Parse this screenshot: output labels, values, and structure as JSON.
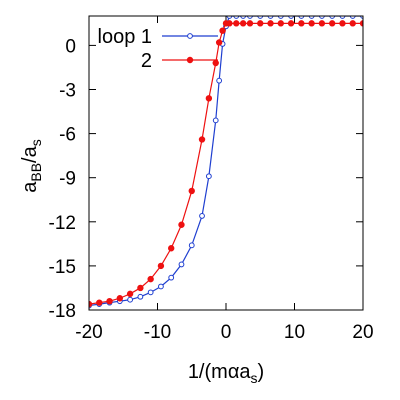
{
  "chart_data": {
    "type": "line",
    "xlabel": {
      "main": "1/(m",
      "alpha": "α",
      "mid": "a",
      "sub": "s",
      "close": ")"
    },
    "ylabel": {
      "main": "a",
      "sub1": "BB",
      "slash": "/a",
      "sub2": "s"
    },
    "xlim": [
      -20,
      20
    ],
    "ylim": [
      -18,
      2
    ],
    "xticks": [
      -20,
      -10,
      0,
      10,
      20
    ],
    "yticks": [
      0,
      -3,
      -6,
      -9,
      -12,
      -15,
      -18
    ],
    "grid": false,
    "legend_position": "top-left",
    "series": [
      {
        "name": "loop 1",
        "color": "#1f3fd0",
        "marker": "open-circle",
        "x": [
          -20,
          -18.5,
          -17,
          -15.5,
          -14,
          -12.5,
          -11,
          -9.5,
          -8,
          -6.5,
          -5,
          -3.5,
          -2.5,
          -1.5,
          -1,
          -0.5,
          0,
          0.5,
          1.5,
          2.5,
          3.5,
          5,
          6.5,
          8,
          9.5,
          11,
          12.5,
          14,
          15.5,
          17,
          18.5,
          20
        ],
        "y": [
          -17.7,
          -17.6,
          -17.5,
          -17.4,
          -17.3,
          -17.1,
          -16.8,
          -16.4,
          -15.8,
          -14.9,
          -13.6,
          -11.6,
          -8.9,
          -5.1,
          -2.4,
          0.1,
          1.3,
          2.0,
          2.0,
          2.0,
          2.0,
          2.0,
          2.0,
          2.0,
          2.0,
          2.0,
          2.0,
          2.0,
          2.0,
          2.0,
          2.0,
          2.0
        ]
      },
      {
        "name": "2",
        "color": "#ee1111",
        "marker": "filled-circle",
        "x": [
          -20,
          -18.5,
          -17,
          -15.5,
          -14,
          -12.5,
          -11,
          -9.5,
          -8,
          -6.5,
          -5,
          -3.5,
          -2.5,
          -1.5,
          -1,
          -0.5,
          0,
          0.5,
          1.5,
          2.5,
          3.5,
          5,
          6.5,
          8,
          9.5,
          11,
          12.5,
          14,
          15.5,
          17,
          18.5,
          20
        ],
        "y": [
          -17.6,
          -17.5,
          -17.4,
          -17.2,
          -16.9,
          -16.5,
          -15.9,
          -15.0,
          -13.8,
          -12.2,
          -9.9,
          -6.4,
          -3.6,
          -1.2,
          0.2,
          1.0,
          1.5,
          1.5,
          1.5,
          1.5,
          1.5,
          1.5,
          1.5,
          1.5,
          1.5,
          1.5,
          1.5,
          1.5,
          1.5,
          1.5,
          1.5,
          1.5
        ]
      }
    ]
  }
}
